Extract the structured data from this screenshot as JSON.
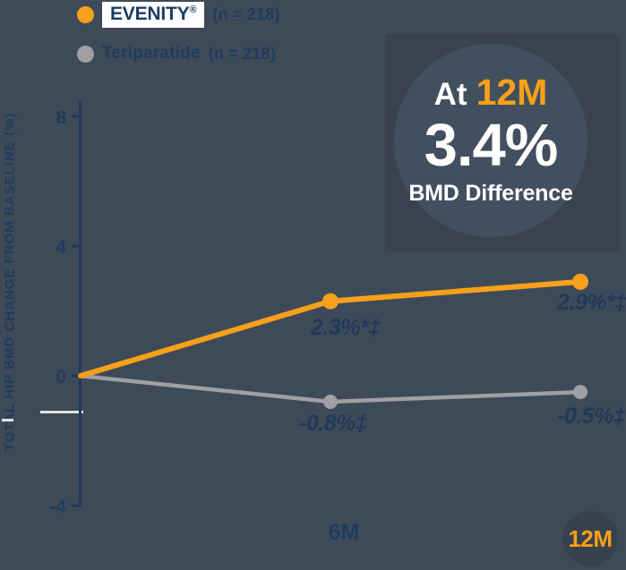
{
  "colors": {
    "background": "#3E4A57",
    "accent_orange": "#F7A01A",
    "series_gray": "#9EA0A3",
    "dark_navy_text": "#1F3B5E",
    "white": "#FFFFFF",
    "callout_rect": "#39434F",
    "callout_circle": "#424F5E",
    "x_badge_circle": "#37424D"
  },
  "chart_data": {
    "type": "line",
    "x": [
      0,
      6,
      12
    ],
    "x_tick_labels": [
      "",
      "6M",
      "12M"
    ],
    "y_axis_label": "TOTAL HIP BMD CHANGE FROM BASELINE (%)",
    "y_ticks": [
      8,
      4,
      0,
      -4
    ],
    "ylim": [
      -4,
      8
    ],
    "grid": false,
    "legend_position": "top-left",
    "series": [
      {
        "name": "EVENITY®",
        "n": "(n = 218)",
        "color": "#F7A01A",
        "line_width": 6,
        "marker_radius": 9,
        "values": [
          0,
          2.3,
          2.9
        ],
        "point_labels": [
          "",
          "2.3%*‡",
          "2.9%*‡"
        ]
      },
      {
        "name": "Teriparatide",
        "n": "(n = 218)",
        "color": "#9EA0A3",
        "line_width": 4.5,
        "marker_radius": 8,
        "values": [
          0,
          -0.8,
          -0.5
        ],
        "point_labels": [
          "",
          "-0.8%‡",
          "-0.5%‡"
        ]
      }
    ],
    "annotation": {
      "at": "At",
      "timepoint": "12M",
      "value": "3.4%",
      "caption": "BMD Difference"
    }
  }
}
